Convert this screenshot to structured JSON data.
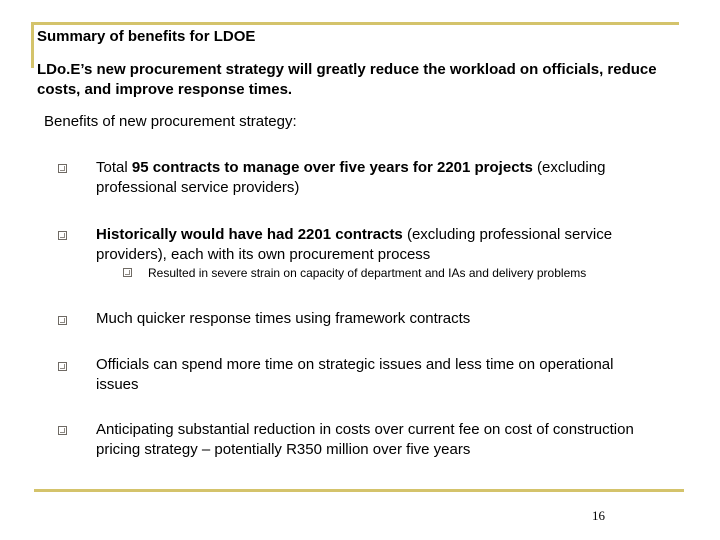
{
  "colors": {
    "accent": "#d4c36b",
    "bullet_border": "#6f6a64"
  },
  "slide": {
    "title": "Summary of benefits for LDOE",
    "intro": "LDo.E’s new procurement strategy will greatly reduce the workload on officials, reduce costs, and improve response times.",
    "subhead": "Benefits of new  procurement strategy:",
    "bullets": [
      {
        "bold": "95 contracts to manage over five years for 2201 projects",
        "prefix": "Total ",
        "suffix": " (excluding",
        "line2": "professional service providers)"
      },
      {
        "bold": "Historically would have had 2201 contracts",
        "suffix": " (excluding professional service",
        "line2": "providers), each with its own procurement process",
        "sub": "Resulted in severe strain on capacity of department and IAs and delivery problems"
      },
      {
        "text": "Much quicker response times using framework contracts"
      },
      {
        "line1": "Officials can spend more time on strategic issues and less time on operational",
        "line2": "issues"
      },
      {
        "line1": "Anticipating substantial reduction in costs over current fee on cost of construction",
        "line2": "pricing strategy – potentially R350 million over five years"
      }
    ],
    "page_number": "16"
  }
}
